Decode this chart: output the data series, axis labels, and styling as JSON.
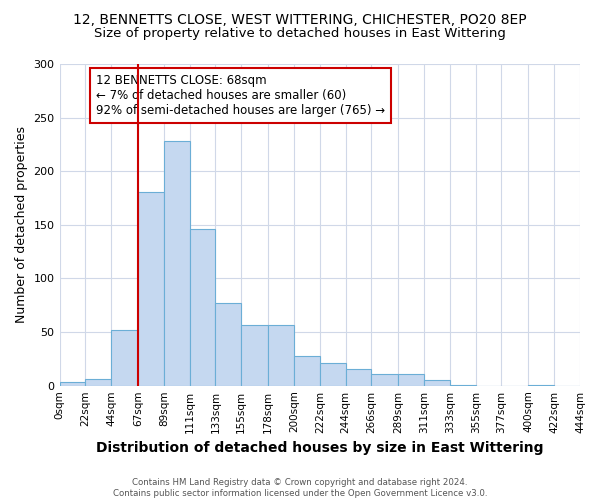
{
  "title": "12, BENNETTS CLOSE, WEST WITTERING, CHICHESTER, PO20 8EP",
  "subtitle": "Size of property relative to detached houses in East Wittering",
  "xlabel": "Distribution of detached houses by size in East Wittering",
  "ylabel": "Number of detached properties",
  "footnote": "Contains HM Land Registry data © Crown copyright and database right 2024.\nContains public sector information licensed under the Open Government Licence v3.0.",
  "bar_heights": [
    3,
    6,
    52,
    181,
    228,
    146,
    77,
    57,
    57,
    28,
    21,
    16,
    11,
    11,
    5,
    1,
    0,
    0,
    1,
    0
  ],
  "bin_edges": [
    0,
    22,
    44,
    67,
    89,
    111,
    133,
    155,
    178,
    200,
    222,
    244,
    266,
    289,
    311,
    333,
    355,
    377,
    400,
    422,
    444
  ],
  "tick_labels": [
    "0sqm",
    "22sqm",
    "44sqm",
    "67sqm",
    "89sqm",
    "111sqm",
    "133sqm",
    "155sqm",
    "178sqm",
    "200sqm",
    "222sqm",
    "244sqm",
    "266sqm",
    "289sqm",
    "311sqm",
    "333sqm",
    "355sqm",
    "377sqm",
    "400sqm",
    "422sqm",
    "444sqm"
  ],
  "bar_color": "#c5d8f0",
  "bar_edge_color": "#6baed6",
  "vline_x": 67,
  "vline_color": "#cc0000",
  "annotation_line1": "12 BENNETTS CLOSE: 68sqm",
  "annotation_line2": "← 7% of detached houses are smaller (60)",
  "annotation_line3": "92% of semi-detached houses are larger (765) →",
  "annotation_box_color": "#ffffff",
  "annotation_box_edge": "#cc0000",
  "ylim": [
    0,
    300
  ],
  "yticks": [
    0,
    50,
    100,
    150,
    200,
    250,
    300
  ],
  "fig_bg_color": "#ffffff",
  "plot_bg_color": "#ffffff",
  "grid_color": "#d0d8e8",
  "title_fontsize": 10,
  "subtitle_fontsize": 9.5,
  "xlabel_fontsize": 10,
  "ylabel_fontsize": 9,
  "tick_fontsize": 7.5,
  "annot_fontsize": 8.5
}
